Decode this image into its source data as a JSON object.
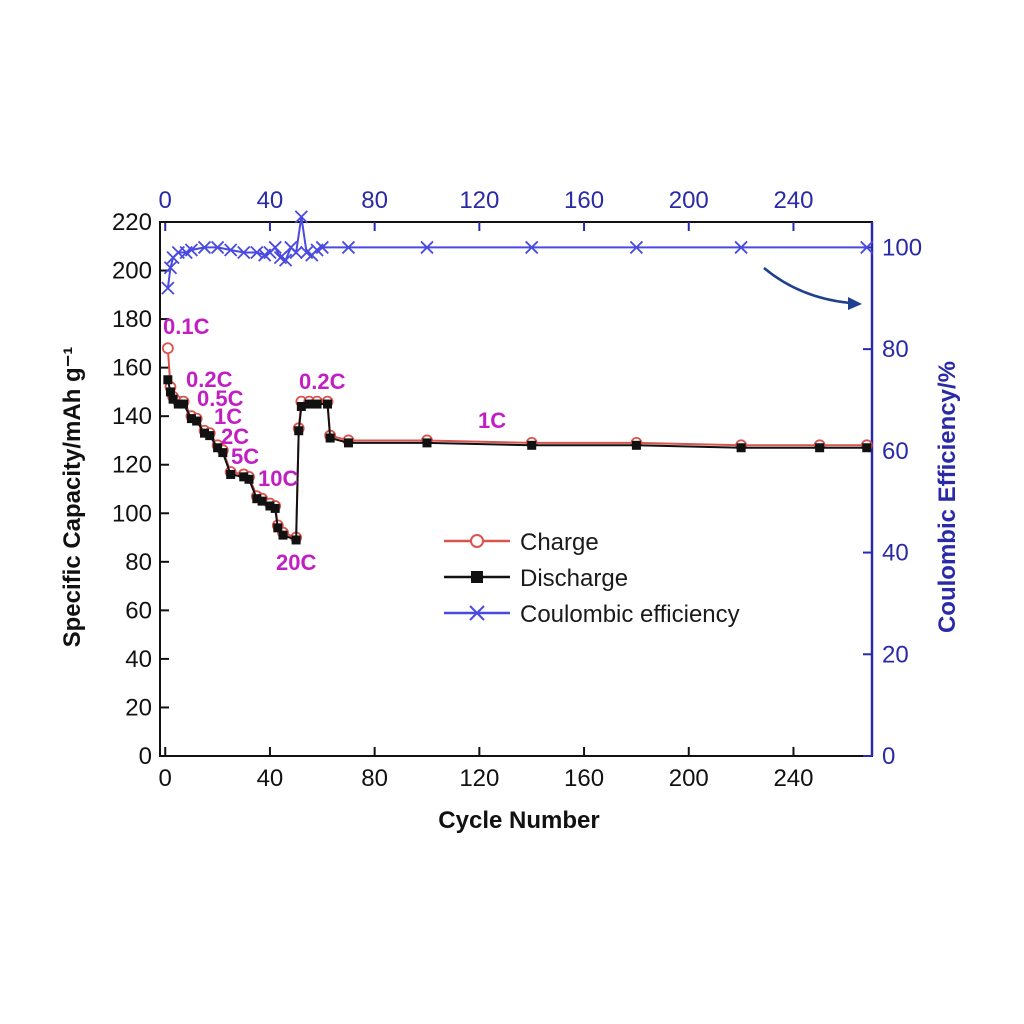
{
  "chart_data": {
    "type": "line",
    "xlabel": "Cycle Number",
    "ylabel": "Specific Capacity/mAh g⁻¹",
    "y2label": "Coulombic Efficiency/%",
    "xlim": [
      -2,
      270
    ],
    "ylim": [
      0,
      220
    ],
    "y2lim": [
      0,
      105
    ],
    "x_ticks": [
      0,
      40,
      80,
      120,
      160,
      200,
      240
    ],
    "y_ticks": [
      0,
      20,
      40,
      60,
      80,
      100,
      120,
      140,
      160,
      180,
      200,
      220
    ],
    "y2_ticks": [
      0,
      20,
      40,
      60,
      80,
      100
    ],
    "colors": {
      "charge": "#d9534f",
      "discharge": "#111111",
      "coulombic": "#4a4ae0",
      "right_axis": "#2a2aa8",
      "rate_label": "#c21fc2",
      "arrow": "#1f3f8f"
    },
    "series": [
      {
        "name": "Charge",
        "marker": "open-circle",
        "points": [
          [
            1,
            168
          ],
          [
            2,
            152
          ],
          [
            3,
            148
          ],
          [
            5,
            146
          ],
          [
            7,
            146
          ],
          [
            10,
            140
          ],
          [
            12,
            139
          ],
          [
            15,
            134
          ],
          [
            17,
            133
          ],
          [
            20,
            128
          ],
          [
            22,
            126
          ],
          [
            25,
            117
          ],
          [
            30,
            116
          ],
          [
            32,
            115
          ],
          [
            35,
            107
          ],
          [
            37,
            106
          ],
          [
            40,
            104
          ],
          [
            42,
            103
          ],
          [
            43,
            95
          ],
          [
            45,
            92
          ],
          [
            50,
            90
          ],
          [
            51,
            135
          ],
          [
            52,
            146
          ],
          [
            55,
            146
          ],
          [
            58,
            146
          ],
          [
            62,
            146
          ],
          [
            63,
            132
          ],
          [
            70,
            130
          ],
          [
            100,
            130
          ],
          [
            140,
            129
          ],
          [
            180,
            129
          ],
          [
            220,
            128
          ],
          [
            250,
            128
          ],
          [
            268,
            128
          ]
        ]
      },
      {
        "name": "Discharge",
        "marker": "filled-square",
        "points": [
          [
            1,
            155
          ],
          [
            2,
            150
          ],
          [
            3,
            147
          ],
          [
            5,
            145
          ],
          [
            7,
            145
          ],
          [
            10,
            139
          ],
          [
            12,
            138
          ],
          [
            15,
            133
          ],
          [
            17,
            132
          ],
          [
            20,
            127
          ],
          [
            22,
            125
          ],
          [
            25,
            116
          ],
          [
            30,
            115
          ],
          [
            32,
            114
          ],
          [
            35,
            106
          ],
          [
            37,
            105
          ],
          [
            40,
            103
          ],
          [
            42,
            102
          ],
          [
            43,
            94
          ],
          [
            45,
            91
          ],
          [
            50,
            89
          ],
          [
            51,
            134
          ],
          [
            52,
            144
          ],
          [
            55,
            145
          ],
          [
            58,
            145
          ],
          [
            62,
            145
          ],
          [
            63,
            131
          ],
          [
            70,
            129
          ],
          [
            100,
            129
          ],
          [
            140,
            128
          ],
          [
            180,
            128
          ],
          [
            220,
            127
          ],
          [
            250,
            127
          ],
          [
            268,
            127
          ]
        ]
      },
      {
        "name": "Coulombic efficiency",
        "axis": "right",
        "marker": "x",
        "points": [
          [
            1,
            92
          ],
          [
            2,
            96
          ],
          [
            3,
            98
          ],
          [
            5,
            99
          ],
          [
            8,
            99
          ],
          [
            10,
            99.5
          ],
          [
            15,
            100
          ],
          [
            20,
            100
          ],
          [
            25,
            99.5
          ],
          [
            30,
            99
          ],
          [
            35,
            99
          ],
          [
            38,
            98.5
          ],
          [
            40,
            99
          ],
          [
            42,
            100
          ],
          [
            44,
            98
          ],
          [
            46,
            97.5
          ],
          [
            48,
            100
          ],
          [
            50,
            99
          ],
          [
            52,
            106
          ],
          [
            54,
            99
          ],
          [
            56,
            98.5
          ],
          [
            58,
            99.5
          ],
          [
            60,
            100
          ],
          [
            70,
            100
          ],
          [
            100,
            100
          ],
          [
            140,
            100
          ],
          [
            180,
            100
          ],
          [
            220,
            100
          ],
          [
            268,
            100
          ]
        ]
      }
    ],
    "annotations": [
      "0.1C",
      "0.2C",
      "0.5C",
      "1C",
      "2C",
      "5C",
      "10C",
      "20C",
      "0.2C",
      "1C"
    ],
    "legend_position": "center"
  }
}
